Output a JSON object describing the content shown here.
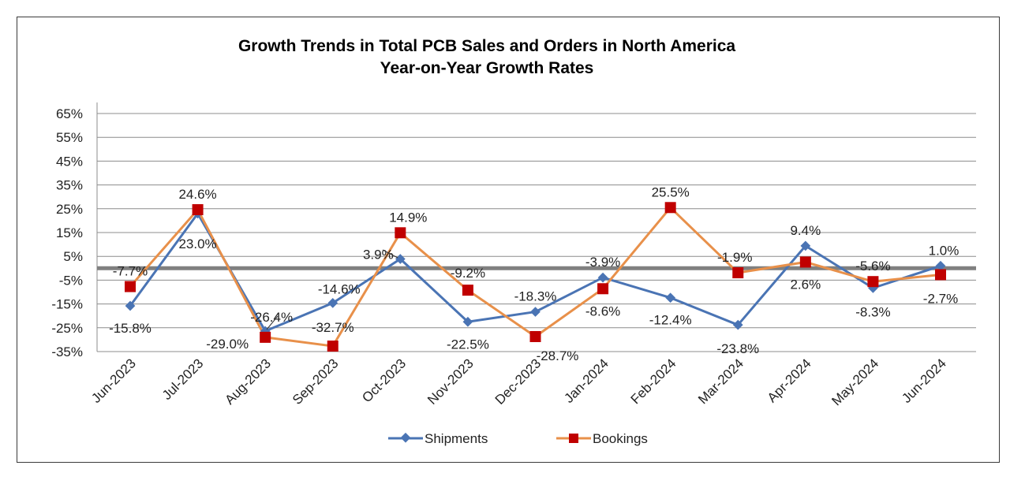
{
  "chart_data": {
    "type": "line",
    "title": "Growth Trends in Total PCB Sales and Orders in North America",
    "subtitle": "Year-on-Year Growth Rates",
    "xlabel": "",
    "ylabel": "",
    "categories": [
      "Jun-2023",
      "Jul-2023",
      "Aug-2023",
      "Sep-2023",
      "Oct-2023",
      "Nov-2023",
      "Dec-2023",
      "Jan-2024",
      "Feb-2024",
      "Mar-2024",
      "Apr-2024",
      "May-2024",
      "Jun-2024"
    ],
    "series": [
      {
        "name": "Shipments",
        "color": "#4a74b4",
        "marker": "diamond",
        "values": [
          -15.8,
          23.0,
          -26.4,
          -14.6,
          3.9,
          -22.5,
          -18.3,
          -3.9,
          -12.4,
          -23.8,
          9.4,
          -8.3,
          1.0
        ],
        "labels": [
          "-15.8%",
          "23.0%",
          "-26.4%",
          "-14.6%",
          "3.9%",
          "-22.5%",
          "-18.3%",
          "-3.9%",
          "-12.4%",
          "-23.8%",
          "9.4%",
          "-8.3%",
          "1.0%"
        ]
      },
      {
        "name": "Bookings",
        "color": "#e8904a",
        "marker_color": "#c00000",
        "marker": "square",
        "values": [
          -7.7,
          24.6,
          -29.0,
          -32.7,
          14.9,
          -9.2,
          -28.7,
          -8.6,
          25.5,
          -1.9,
          2.6,
          -5.6,
          -2.7
        ],
        "labels": [
          "-7.7%",
          "24.6%",
          "-29.0%",
          "-32.7%",
          "14.9%",
          "-9.2%",
          "-28.7%",
          "-8.6%",
          "25.5%",
          "-1.9%",
          "2.6%",
          "-5.6%",
          "-2.7%"
        ]
      }
    ],
    "yticks": [
      "65%",
      "55%",
      "45%",
      "35%",
      "25%",
      "15%",
      "5%",
      "-5%",
      "-15%",
      "-25%",
      "-35%"
    ],
    "ytick_values": [
      65,
      55,
      45,
      35,
      25,
      15,
      5,
      -5,
      -15,
      -25,
      -35
    ],
    "ylim": [
      -35,
      65
    ],
    "zero_line": true,
    "grid": true,
    "legend_position": "bottom"
  }
}
